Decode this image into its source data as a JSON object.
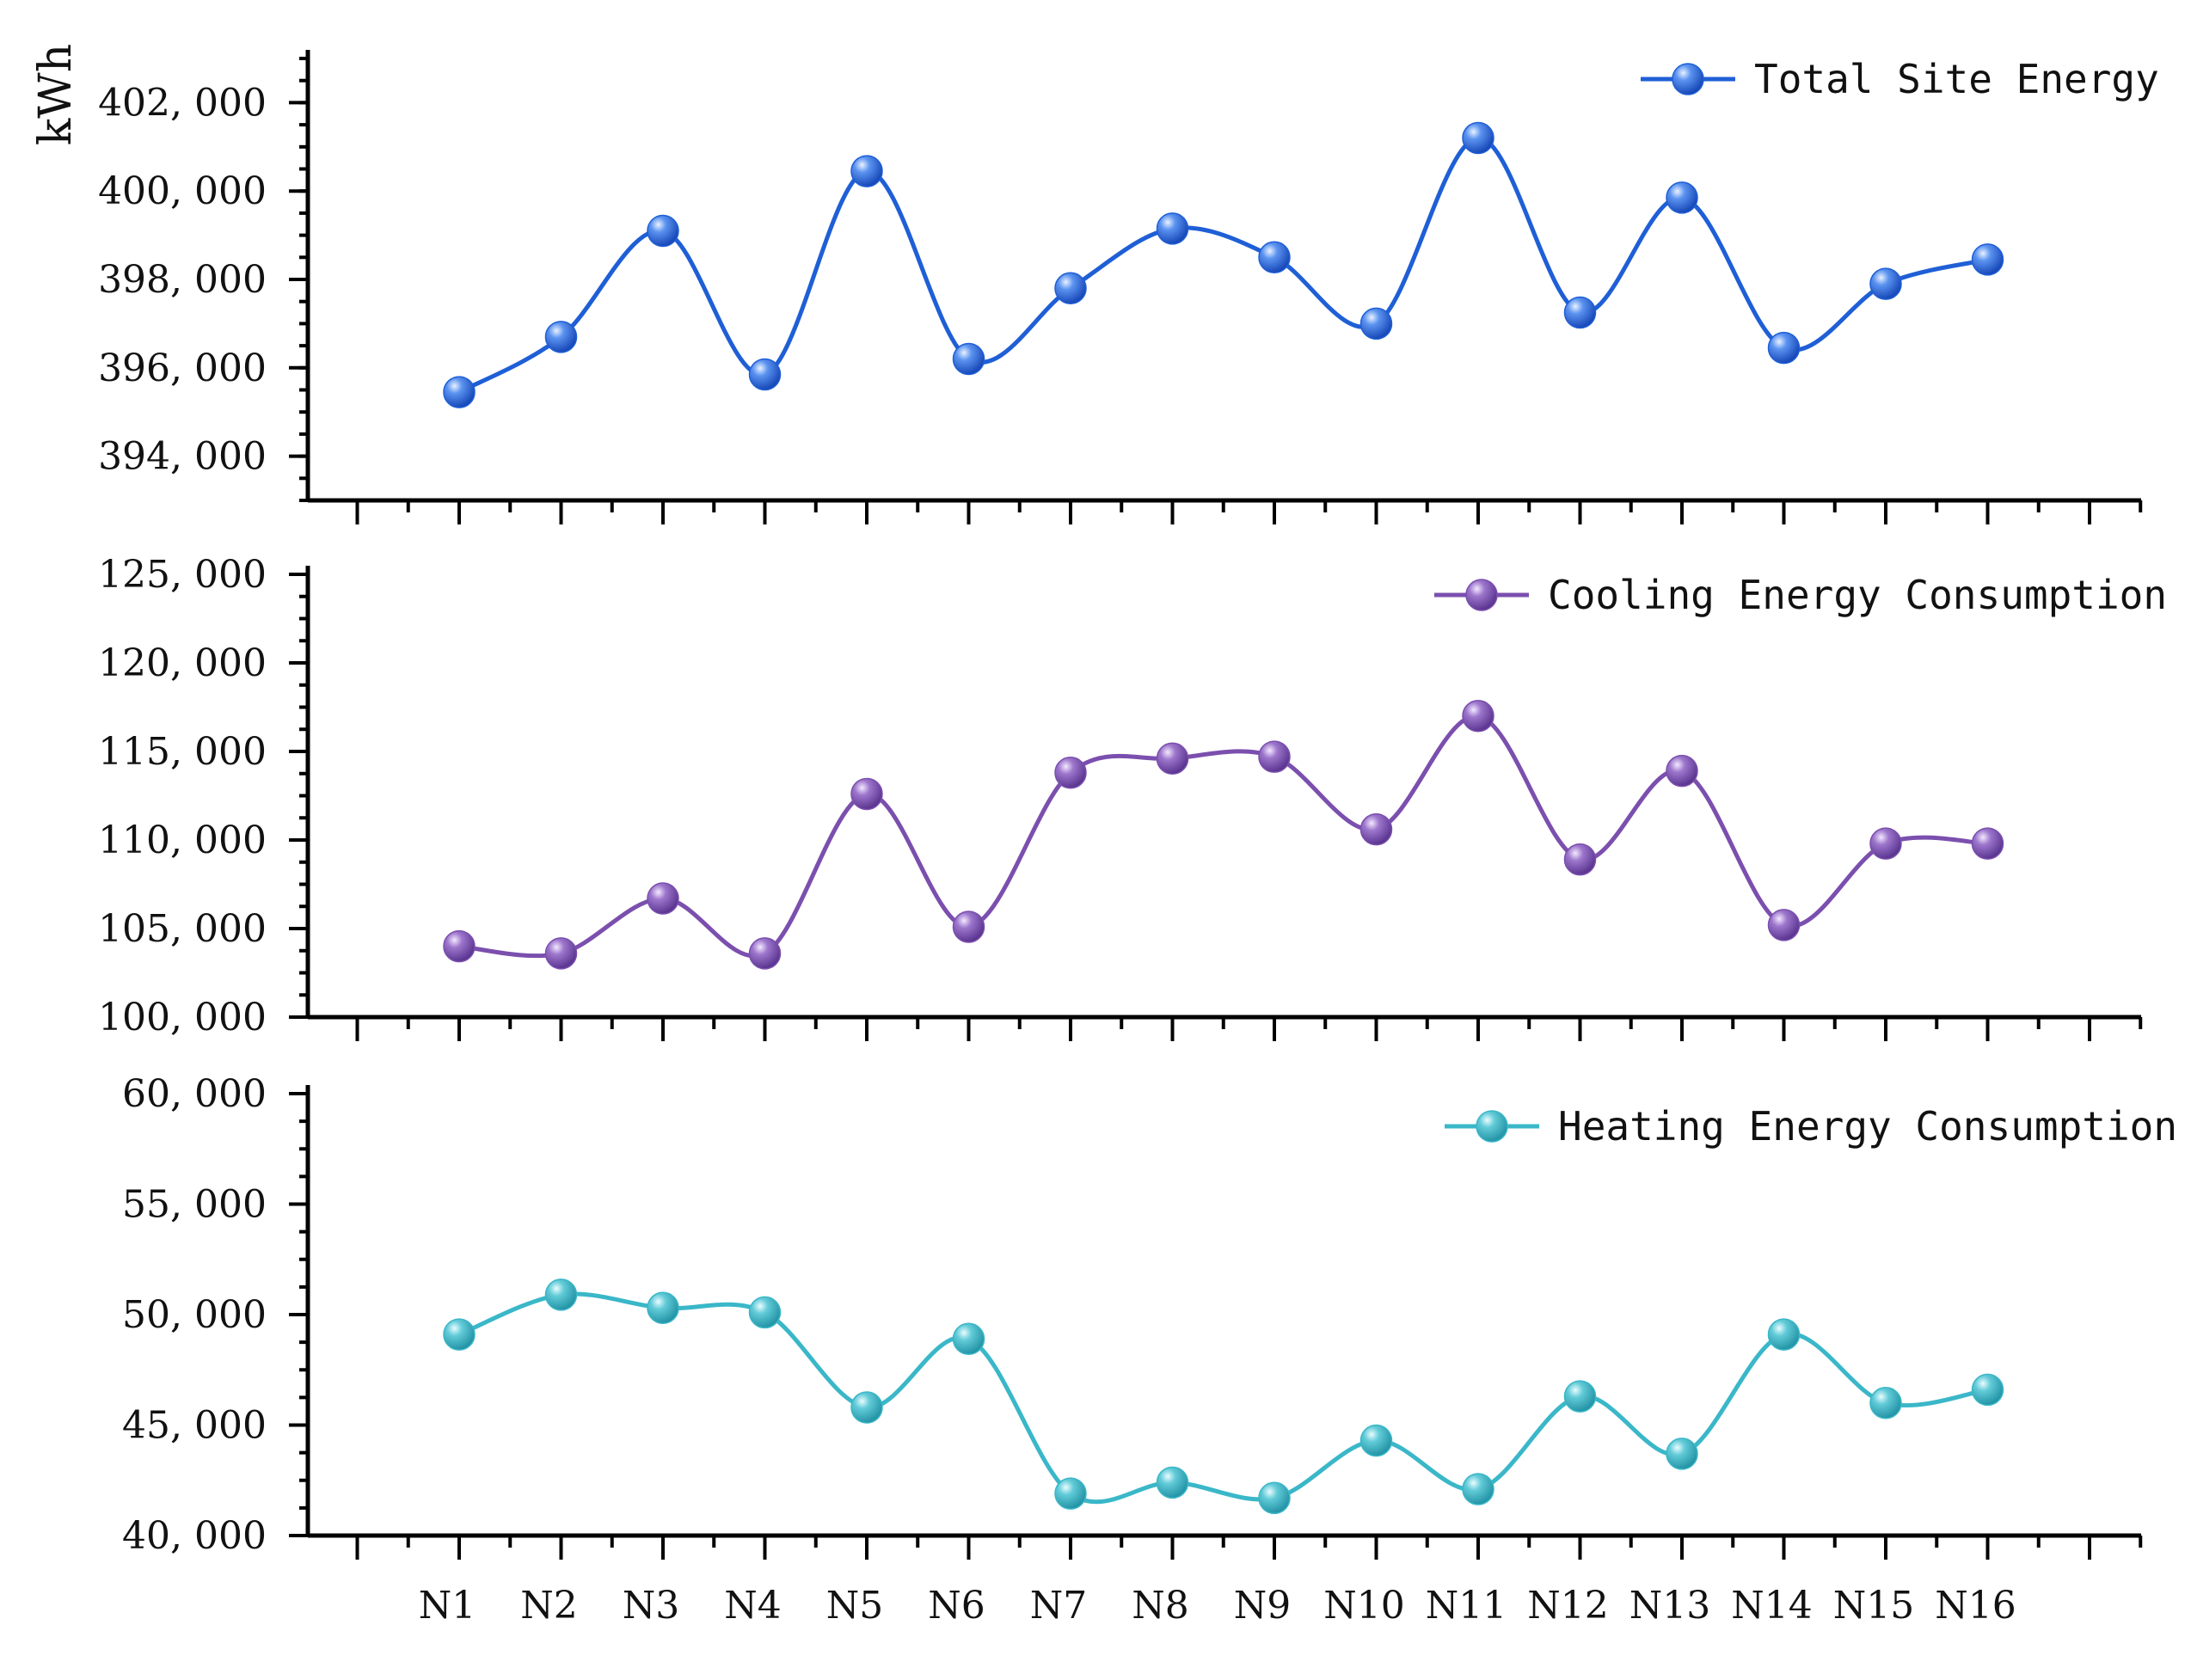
{
  "chart_data": {
    "type": "line",
    "ylabel": "kWh",
    "categories": [
      "N1",
      "N2",
      "N3",
      "N4",
      "N5",
      "N6",
      "N7",
      "N8",
      "N9",
      "N10",
      "N11",
      "N12",
      "N13",
      "N14",
      "N15",
      "N16"
    ],
    "panels": [
      {
        "name": "Total Site Energy",
        "color": "#1f5fd6",
        "ylim": [
          393000,
          403000
        ],
        "yticks": [
          394000,
          396000,
          398000,
          400000,
          402000
        ],
        "ytick_labels": [
          "394, 000",
          "396, 000",
          "398, 000",
          "400, 000",
          "402, 000"
        ],
        "values": [
          395450,
          396700,
          399100,
          395850,
          400450,
          396200,
          397800,
          399150,
          398500,
          397000,
          401200,
          397250,
          399850,
          396450,
          397900,
          398450
        ]
      },
      {
        "name": "Cooling Energy Consumption",
        "color": "#7b4fae",
        "ylim": [
          100000,
          125000
        ],
        "yticks": [
          100000,
          105000,
          110000,
          115000,
          120000,
          125000
        ],
        "ytick_labels": [
          "100, 000",
          "105, 000",
          "110, 000",
          "115, 000",
          "120, 000",
          "125, 000"
        ],
        "values": [
          104000,
          103600,
          106700,
          103600,
          112600,
          105100,
          113800,
          114600,
          114700,
          110600,
          117000,
          108900,
          113900,
          105200,
          109800,
          109800
        ]
      },
      {
        "name": "Heating Energy Consumption",
        "color": "#3ab7c8",
        "ylim": [
          40000,
          60000
        ],
        "yticks": [
          40000,
          45000,
          50000,
          55000,
          60000
        ],
        "ytick_labels": [
          "40, 000",
          "45, 000",
          "50, 000",
          "55, 000",
          "60, 000"
        ],
        "values": [
          49100,
          50900,
          50300,
          50100,
          45800,
          48900,
          41900,
          42400,
          41700,
          44300,
          42100,
          46300,
          43700,
          49100,
          46000,
          46600
        ]
      }
    ]
  }
}
